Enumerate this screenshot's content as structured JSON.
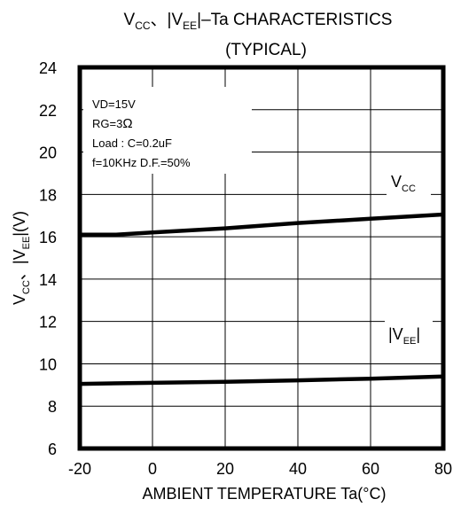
{
  "chart_data": {
    "type": "line",
    "title_line1": {
      "p1": "V",
      "p1_sub": "CC",
      "p2": "、|V",
      "p2_sub": "EE",
      "p3": "|–Ta   CHARACTERISTICS"
    },
    "title_line2": "(TYPICAL)",
    "xlabel": "AMBIENT TEMPERATURE  Ta(°C)",
    "ylabel": {
      "p1": "V",
      "p1_sub": "CC",
      "p2": "、|V",
      "p2_sub": "EE",
      "p3": "|(V)"
    },
    "xlim": [
      -20,
      80
    ],
    "ylim": [
      6,
      24
    ],
    "x_ticks": [
      -20,
      0,
      20,
      40,
      60,
      80
    ],
    "y_ticks": [
      6,
      8,
      10,
      12,
      14,
      16,
      18,
      20,
      22,
      24
    ],
    "grid": true,
    "conditions": [
      {
        "text": "VD=15V"
      },
      {
        "text": "RG=3",
        "symbol": "Ω"
      },
      {
        "text": "Load : C=0.2uF"
      },
      {
        "text": "f=10KHz  D.F.=50%"
      }
    ],
    "series": [
      {
        "name": {
          "main": "V",
          "sub": "CC"
        },
        "x": [
          -20,
          -10,
          0,
          20,
          40,
          60,
          80
        ],
        "y": [
          16.1,
          16.1,
          16.2,
          16.4,
          16.65,
          16.85,
          17.05
        ]
      },
      {
        "name": {
          "pre": "|V",
          "sub": "EE",
          "post": "|"
        },
        "x": [
          -20,
          0,
          20,
          40,
          60,
          80
        ],
        "y": [
          9.05,
          9.1,
          9.15,
          9.22,
          9.3,
          9.4
        ]
      }
    ]
  }
}
